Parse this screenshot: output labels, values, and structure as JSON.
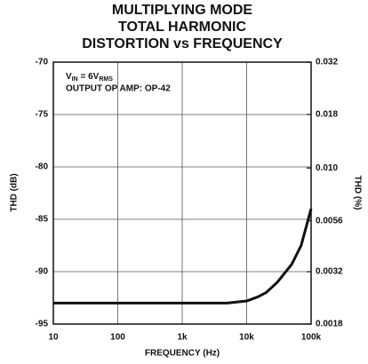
{
  "chart_data": {
    "type": "line",
    "title": [
      "MULTIPLYING MODE",
      "TOTAL HARMONIC",
      "DISTORTION vs FREQUENCY"
    ],
    "xlabel": "FREQUENCY (Hz)",
    "ylabel": "THD (dB)",
    "y2label": "THD (%)",
    "annotations": [
      [
        "V",
        "IN",
        " = 6V",
        "RMS"
      ],
      "OUTPUT OP AMP: OP-42"
    ],
    "x": [
      10,
      100,
      1000,
      5000,
      10000,
      15000,
      20000,
      30000,
      50000,
      70000,
      100000
    ],
    "series": [
      {
        "name": "THD",
        "color": "#111111",
        "values": [
          -93,
          -93,
          -93,
          -93,
          -92.8,
          -92.4,
          -92,
          -91,
          -89.3,
          -87.5,
          -84
        ]
      }
    ],
    "xscale": "log",
    "xlim": [
      10,
      100000
    ],
    "xticks": [
      10,
      100,
      {
        "value": 1000,
        "label": "1k"
      },
      {
        "value": 10000,
        "label": "10k"
      },
      {
        "value": 100000,
        "label": "100k"
      }
    ],
    "ylim": [
      -95,
      -70
    ],
    "yticks": [
      -95,
      -90,
      -85,
      -80,
      -75,
      -70
    ],
    "y2scale": "log",
    "y2lim": [
      0.0018,
      0.032
    ],
    "y2ticks": [
      0.0018,
      0.0032,
      0.0056,
      {
        "value": 0.01,
        "label": "0.010"
      },
      0.018,
      0.032
    ],
    "grid": true
  }
}
